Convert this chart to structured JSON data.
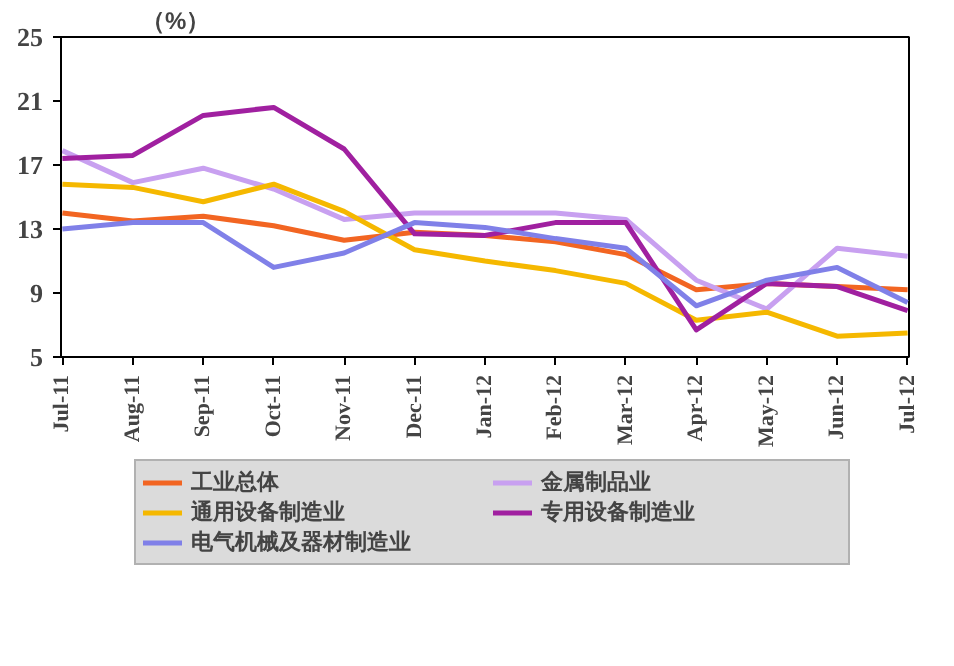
{
  "chart_data": {
    "type": "line",
    "ylabel": "（%）",
    "categories": [
      "Jul-11",
      "Aug-11",
      "Sep-11",
      "Oct-11",
      "Nov-11",
      "Dec-11",
      "Jan-12",
      "Feb-12",
      "Mar-12",
      "Apr-12",
      "May-12",
      "Jun-12",
      "Jul-12"
    ],
    "series": [
      {
        "name": "工业总体",
        "color": "#f26522",
        "values": [
          14.0,
          13.5,
          13.8,
          13.2,
          12.3,
          12.8,
          12.6,
          12.2,
          11.4,
          9.2,
          9.6,
          9.4,
          9.2
        ]
      },
      {
        "name": "金属制品业",
        "color": "#c8a0f0",
        "values": [
          17.9,
          15.9,
          16.8,
          15.5,
          13.6,
          14.0,
          14.0,
          14.0,
          13.6,
          9.8,
          8.0,
          11.8,
          11.3
        ]
      },
      {
        "name": "通用设备制造业",
        "color": "#f5b800",
        "values": [
          15.8,
          15.6,
          14.7,
          15.8,
          14.1,
          11.7,
          11.0,
          10.4,
          9.6,
          7.3,
          7.8,
          6.3,
          6.5
        ]
      },
      {
        "name": "专用设备制造业",
        "color": "#a020a0",
        "values": [
          17.4,
          17.6,
          20.1,
          20.6,
          18.0,
          12.7,
          12.6,
          13.4,
          13.4,
          6.7,
          9.6,
          9.4,
          7.9
        ]
      },
      {
        "name": "电气机械及器材制造业",
        "color": "#8080e8",
        "values": [
          13.0,
          13.4,
          13.4,
          10.6,
          11.5,
          13.4,
          13.1,
          12.4,
          11.8,
          8.2,
          9.8,
          10.6,
          8.4
        ]
      }
    ],
    "ylim": [
      5,
      25
    ],
    "yticks": [
      5,
      9,
      13,
      17,
      21,
      25
    ],
    "grid": false,
    "legend": "bottom",
    "marker": "none",
    "line_style": "solid"
  }
}
